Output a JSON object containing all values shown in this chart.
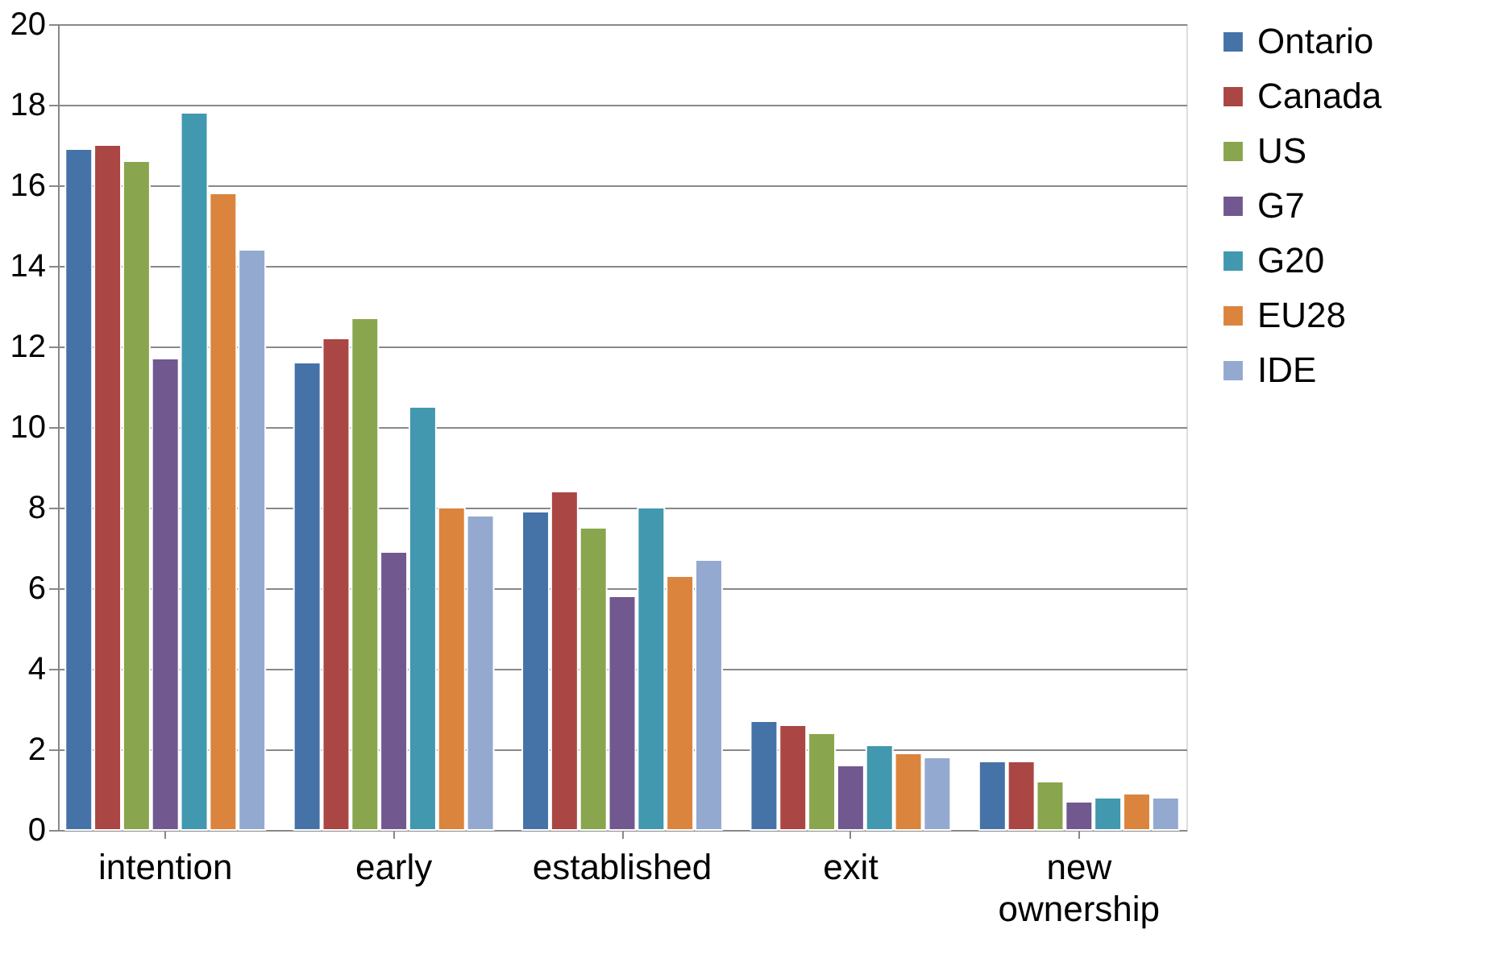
{
  "chart_data": {
    "type": "bar",
    "categories": [
      "intention",
      "early",
      "established",
      "exit",
      "new ownership"
    ],
    "series": [
      {
        "name": "Ontario",
        "color": "#4572a7",
        "values": [
          16.9,
          11.6,
          7.9,
          2.7,
          1.7
        ]
      },
      {
        "name": "Canada",
        "color": "#aa4643",
        "values": [
          17.0,
          12.2,
          8.4,
          2.6,
          1.7
        ]
      },
      {
        "name": "US",
        "color": "#89a54e",
        "values": [
          16.6,
          12.7,
          7.5,
          2.4,
          1.2
        ]
      },
      {
        "name": "G7",
        "color": "#71588f",
        "values": [
          11.7,
          6.9,
          5.8,
          1.6,
          0.7
        ]
      },
      {
        "name": "G20",
        "color": "#4198af",
        "values": [
          17.8,
          10.5,
          8.0,
          2.1,
          0.8
        ]
      },
      {
        "name": "EU28",
        "color": "#db843d",
        "values": [
          15.8,
          8.0,
          6.3,
          1.9,
          0.9
        ]
      },
      {
        "name": "IDE",
        "color": "#93a9cf",
        "values": [
          14.4,
          7.8,
          6.7,
          1.8,
          0.8
        ]
      }
    ],
    "ylim": [
      0,
      20
    ],
    "yticks": [
      0,
      2,
      4,
      6,
      8,
      10,
      12,
      14,
      16,
      18,
      20
    ],
    "grid": "y",
    "legend": "right"
  }
}
